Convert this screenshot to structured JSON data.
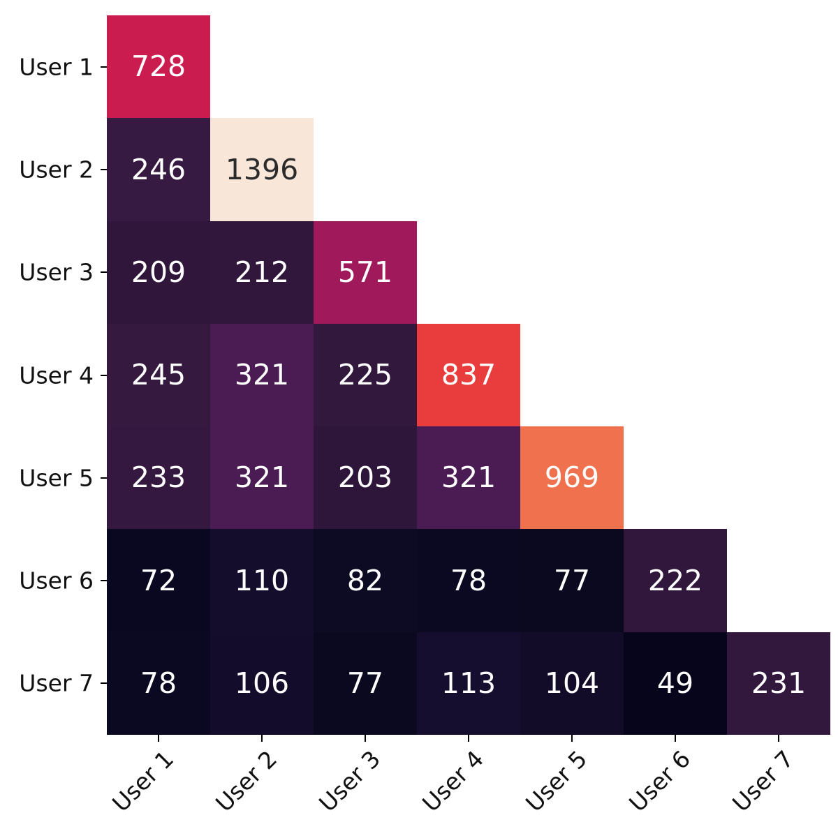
{
  "chart_data": {
    "type": "heatmap",
    "title": "",
    "shape": "lower-triangular",
    "colormap": "rocket",
    "value_range": [
      49,
      1396
    ],
    "grid_on": false,
    "x_labels": [
      "User 1",
      "User 2",
      "User 3",
      "User 4",
      "User 5",
      "User 6",
      "User 7"
    ],
    "y_labels": [
      "User 1",
      "User 2",
      "User 3",
      "User 4",
      "User 5",
      "User 6",
      "User 7"
    ],
    "cells": [
      {
        "row": 0,
        "col": 0,
        "value": 728,
        "bg": "#cb1c50",
        "fg": "#ffffff"
      },
      {
        "row": 1,
        "col": 0,
        "value": 246,
        "bg": "#371a41",
        "fg": "#ffffff"
      },
      {
        "row": 1,
        "col": 1,
        "value": 1396,
        "bg": "#f8e7d9",
        "fg": "#2b2b2b"
      },
      {
        "row": 2,
        "col": 0,
        "value": 209,
        "bg": "#30163b",
        "fg": "#ffffff"
      },
      {
        "row": 2,
        "col": 1,
        "value": 212,
        "bg": "#30173b",
        "fg": "#ffffff"
      },
      {
        "row": 2,
        "col": 2,
        "value": 571,
        "bg": "#a01a5b",
        "fg": "#ffffff"
      },
      {
        "row": 3,
        "col": 0,
        "value": 245,
        "bg": "#36193f",
        "fg": "#ffffff"
      },
      {
        "row": 3,
        "col": 1,
        "value": 321,
        "bg": "#4b1c53",
        "fg": "#ffffff"
      },
      {
        "row": 3,
        "col": 2,
        "value": 225,
        "bg": "#32183d",
        "fg": "#ffffff"
      },
      {
        "row": 3,
        "col": 3,
        "value": 837,
        "bg": "#e83d3c",
        "fg": "#ffffff"
      },
      {
        "row": 4,
        "col": 0,
        "value": 233,
        "bg": "#34183f",
        "fg": "#ffffff"
      },
      {
        "row": 4,
        "col": 1,
        "value": 321,
        "bg": "#4b1c53",
        "fg": "#ffffff"
      },
      {
        "row": 4,
        "col": 2,
        "value": 203,
        "bg": "#2e163a",
        "fg": "#ffffff"
      },
      {
        "row": 4,
        "col": 3,
        "value": 321,
        "bg": "#4b1c53",
        "fg": "#ffffff"
      },
      {
        "row": 4,
        "col": 4,
        "value": 969,
        "bg": "#f0714d",
        "fg": "#ffffff"
      },
      {
        "row": 5,
        "col": 0,
        "value": 72,
        "bg": "#0a0820",
        "fg": "#ffffff"
      },
      {
        "row": 5,
        "col": 1,
        "value": 110,
        "bg": "#140d2c",
        "fg": "#ffffff"
      },
      {
        "row": 5,
        "col": 2,
        "value": 82,
        "bg": "#0d0a23",
        "fg": "#ffffff"
      },
      {
        "row": 5,
        "col": 3,
        "value": 78,
        "bg": "#0b0921",
        "fg": "#ffffff"
      },
      {
        "row": 5,
        "col": 4,
        "value": 77,
        "bg": "#0b0920",
        "fg": "#ffffff"
      },
      {
        "row": 5,
        "col": 5,
        "value": 222,
        "bg": "#31173c",
        "fg": "#ffffff"
      },
      {
        "row": 6,
        "col": 0,
        "value": 78,
        "bg": "#0b0921",
        "fg": "#ffffff"
      },
      {
        "row": 6,
        "col": 1,
        "value": 106,
        "bg": "#130d2b",
        "fg": "#ffffff"
      },
      {
        "row": 6,
        "col": 2,
        "value": 77,
        "bg": "#0b0920",
        "fg": "#ffffff"
      },
      {
        "row": 6,
        "col": 3,
        "value": 113,
        "bg": "#150e2e",
        "fg": "#ffffff"
      },
      {
        "row": 6,
        "col": 4,
        "value": 104,
        "bg": "#120c29",
        "fg": "#ffffff"
      },
      {
        "row": 6,
        "col": 5,
        "value": 49,
        "bg": "#06051c",
        "fg": "#ffffff"
      },
      {
        "row": 6,
        "col": 6,
        "value": 231,
        "bg": "#33183e",
        "fg": "#ffffff"
      }
    ]
  }
}
